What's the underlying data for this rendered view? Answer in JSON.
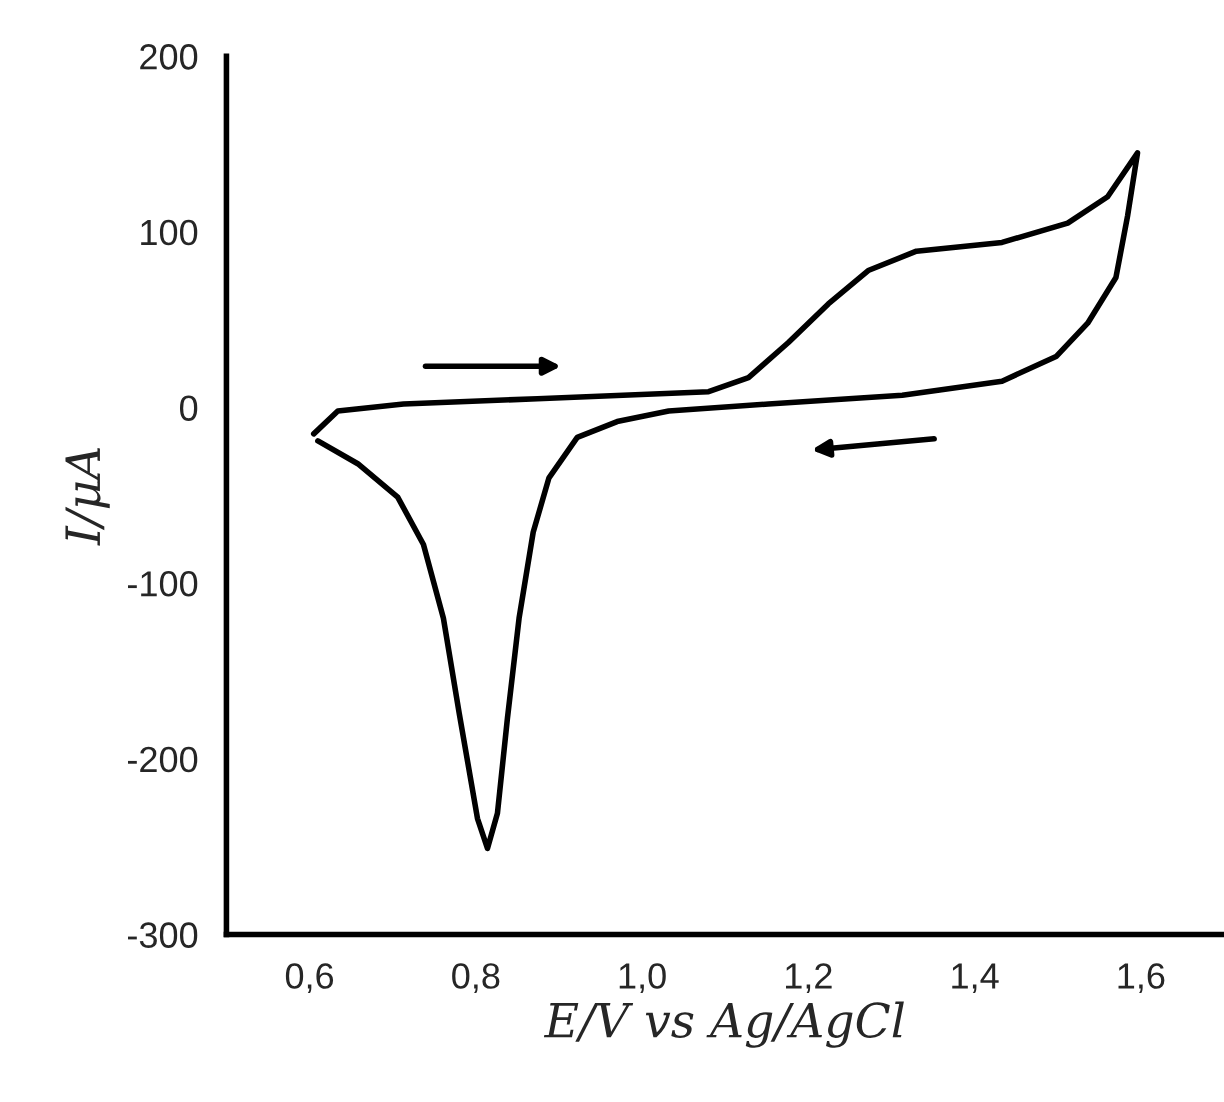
{
  "chart_data": {
    "type": "line",
    "xlabel": "E/V vs Ag/AgCl",
    "ylabel": "I/μA",
    "x": [
      0.605,
      0.634,
      0.713,
      0.874,
      1.08,
      1.128,
      1.176,
      1.224,
      1.272,
      1.33,
      1.433,
      1.512,
      1.56,
      1.596,
      1.584,
      1.57,
      1.536,
      1.498,
      1.433,
      1.313,
      1.152,
      1.032,
      0.97,
      0.922,
      0.888,
      0.869,
      0.852,
      0.838,
      0.826,
      0.814,
      0.802,
      0.78,
      0.761,
      0.737,
      0.706,
      0.658,
      0.61
    ],
    "values": [
      -15,
      -2,
      2,
      5,
      9,
      17,
      37,
      59,
      78,
      89,
      94,
      105,
      120,
      145,
      109,
      74,
      48,
      29,
      15,
      7,
      2,
      -2,
      -8,
      -17,
      -40,
      -71,
      -120,
      -177,
      -231,
      -251,
      -234,
      -174,
      -120,
      -78,
      -51,
      -32,
      -19
    ],
    "color": "#000000",
    "xlim": [
      0.5,
      1.7
    ],
    "xticks": [
      {
        "value": 0.6,
        "label": "0,6"
      },
      {
        "value": 0.8,
        "label": "0,8"
      },
      {
        "value": 1.0,
        "label": "1,0"
      },
      {
        "value": 1.2,
        "label": "1,2"
      },
      {
        "value": 1.4,
        "label": "1,4"
      },
      {
        "value": 1.6,
        "label": "1,6"
      }
    ],
    "ylim": [
      -300,
      200
    ],
    "yticks": [
      -300,
      -200,
      -100,
      0,
      100,
      200
    ],
    "grid": false
  }
}
